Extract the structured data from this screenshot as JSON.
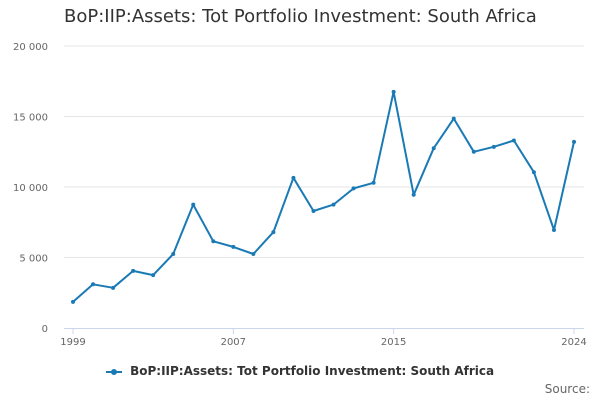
{
  "title": "BoP:IIP:Assets: Tot Portfolio Investment: South Africa",
  "source_label": "Source:",
  "colors": {
    "series": "#1a7ab5",
    "grid": "#e6e6e6",
    "axis": "#ccd6eb"
  },
  "chart_data": {
    "type": "line",
    "title": "BoP:IIP:Assets: Tot Portfolio Investment: South Africa",
    "xlabel": "",
    "ylabel": "",
    "x": [
      1999,
      2000,
      2001,
      2002,
      2003,
      2004,
      2005,
      2006,
      2007,
      2008,
      2009,
      2010,
      2011,
      2012,
      2013,
      2014,
      2015,
      2016,
      2017,
      2018,
      2019,
      2020,
      2021,
      2022,
      2023,
      2024
    ],
    "series": [
      {
        "name": "BoP:IIP:Assets: Tot Portfolio Investment: South Africa",
        "values": [
          1850,
          3100,
          2850,
          4050,
          3750,
          5250,
          8750,
          6150,
          5750,
          5250,
          6800,
          10650,
          8300,
          8750,
          9900,
          10300,
          16750,
          9450,
          12750,
          14850,
          12500,
          12850,
          13300,
          11050,
          6950,
          13200
        ]
      }
    ],
    "ylim": [
      0,
      20000
    ],
    "y_ticks": [
      0,
      5000,
      10000,
      15000,
      20000
    ],
    "y_tick_labels": [
      "0",
      "5 000",
      "10 000",
      "15 000",
      "20 000"
    ],
    "x_ticks": [
      1999,
      2007,
      2015,
      2024
    ],
    "x_tick_labels": [
      "1999",
      "2007",
      "2015",
      "2024"
    ],
    "grid": true,
    "legend": "bottom-center"
  }
}
